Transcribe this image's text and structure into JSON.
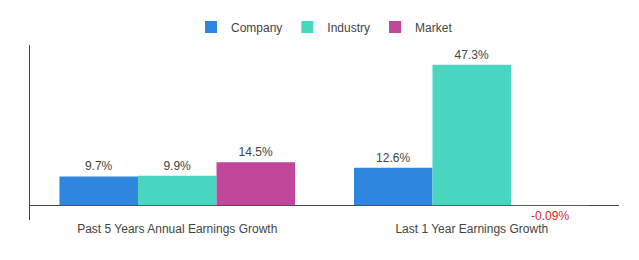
{
  "chart_data": {
    "type": "bar",
    "categories": [
      "Past 5 Years Annual Earnings Growth",
      "Last 1 Year Earnings Growth"
    ],
    "series": [
      {
        "name": "Company",
        "color": "#2e86de",
        "values": [
          9.7,
          12.6
        ],
        "value_labels": [
          "9.7%",
          "12.6%"
        ]
      },
      {
        "name": "Industry",
        "color": "#48d6c0",
        "values": [
          9.9,
          47.3
        ],
        "value_labels": [
          "9.9%",
          "47.3%"
        ]
      },
      {
        "name": "Market",
        "colors": [
          "#c0479a",
          "#555577"
        ],
        "values": [
          14.5,
          -0.09
        ],
        "value_labels": [
          "14.5%",
          "-0.09%"
        ]
      }
    ],
    "ylim": [
      -5,
      54
    ],
    "grid": false,
    "legend": "top",
    "data_labels": true,
    "tick_labels": "x"
  }
}
